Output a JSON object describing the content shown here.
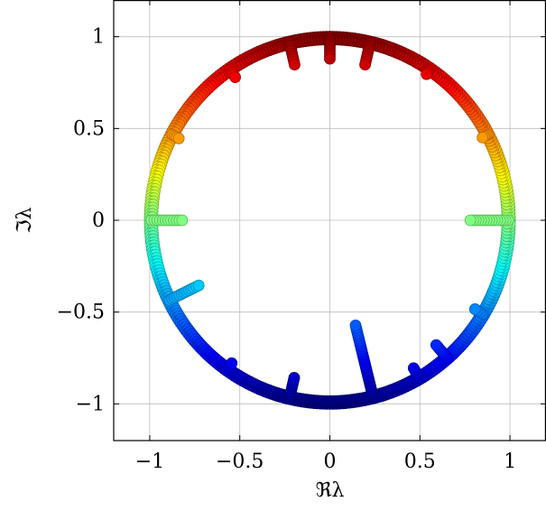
{
  "chart_data": {
    "type": "scatter",
    "title": "",
    "xlabel": "ℜλ",
    "ylabel": "ℑλ",
    "xlim": [
      -1.2,
      1.2
    ],
    "ylim": [
      -1.2,
      1.2
    ],
    "x_ticks": [
      -1,
      -0.5,
      0,
      0.5,
      1
    ],
    "y_ticks": [
      -1,
      -0.5,
      0,
      0.5,
      1
    ],
    "x_tick_labels": [
      "−1",
      "−0.5",
      "0",
      "0.5",
      "1"
    ],
    "y_tick_labels": [
      "−1",
      "−0.5",
      "0",
      "0.5",
      "1"
    ],
    "grid": true,
    "colormap": "jet",
    "color_by": "imaginary part",
    "marker": "filled circle with darker outline",
    "series": [
      {
        "values": "points of the eigenvalue set",
        "arc": {
          "shape": "points distributed along the unit circle",
          "radius_range": [
            0.97,
            1.0
          ],
          "angle_step_deg": 1.0
        },
        "spokes": [
          {
            "angle_deg": 90,
            "r_start": 1.0,
            "r_end": 0.88
          },
          {
            "angle_deg": 103,
            "r_start": 0.99,
            "r_end": 0.87
          },
          {
            "angle_deg": 77,
            "r_start": 0.99,
            "r_end": 0.87
          },
          {
            "angle_deg": 152,
            "r_start": 0.99,
            "r_end": 0.95
          },
          {
            "angle_deg": 124,
            "r_start": 0.99,
            "r_end": 0.94
          },
          {
            "angle_deg": 28,
            "r_start": 0.99,
            "r_end": 0.96
          },
          {
            "angle_deg": 56,
            "r_start": 0.99,
            "r_end": 0.96
          },
          {
            "angle_deg": 0,
            "r_start": 0.99,
            "r_end": 0.78
          },
          {
            "angle_deg": 180,
            "r_start": 0.99,
            "r_end": 0.82
          },
          {
            "angle_deg": 206,
            "r_start": 0.99,
            "r_end": 0.81
          },
          {
            "angle_deg": 235,
            "r_start": 0.99,
            "r_end": 0.95
          },
          {
            "angle_deg": 257,
            "r_start": 0.99,
            "r_end": 0.88
          },
          {
            "angle_deg": 284,
            "r_start": 0.99,
            "r_end": 0.59
          },
          {
            "angle_deg": 300,
            "r_start": 0.99,
            "r_end": 0.93
          },
          {
            "angle_deg": 311,
            "r_start": 0.99,
            "r_end": 0.9
          },
          {
            "angle_deg": 329,
            "r_start": 0.99,
            "r_end": 0.94
          }
        ]
      }
    ]
  }
}
